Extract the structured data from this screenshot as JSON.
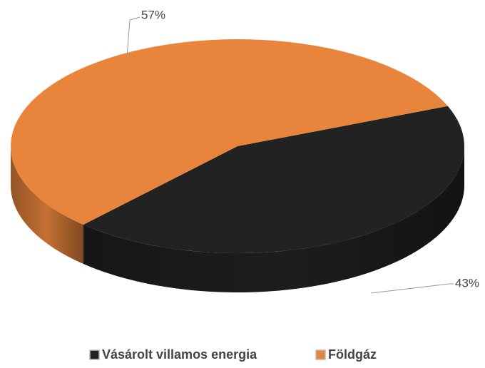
{
  "chart_data": {
    "type": "pie",
    "categories": [
      "Vásárolt villamos energia",
      "Földgáz"
    ],
    "values": [
      43,
      57
    ],
    "value_labels": [
      "43%",
      "57%"
    ],
    "colors": [
      "#222222",
      "#E8843C"
    ],
    "legend": "bottom"
  }
}
